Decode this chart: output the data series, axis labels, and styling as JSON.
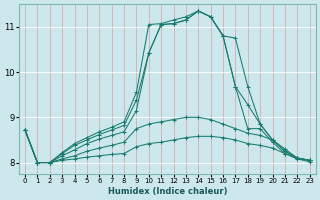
{
  "title": "",
  "xlabel": "Humidex (Indice chaleur)",
  "background_color": "#cce8ec",
  "line_color": "#1a7a6e",
  "xlim": [
    -0.5,
    23.5
  ],
  "ylim": [
    7.75,
    11.5
  ],
  "yticks": [
    8,
    9,
    10,
    11
  ],
  "xticks": [
    0,
    1,
    2,
    3,
    4,
    5,
    6,
    7,
    8,
    9,
    10,
    11,
    12,
    13,
    14,
    15,
    16,
    17,
    18,
    19,
    20,
    21,
    22,
    23
  ],
  "series": [
    [
      8.72,
      8.0,
      8.0,
      8.22,
      8.42,
      8.55,
      8.68,
      8.78,
      8.9,
      9.55,
      11.05,
      11.07,
      11.15,
      11.22,
      11.35,
      11.22,
      10.8,
      10.75,
      9.68,
      8.85,
      8.5,
      8.25,
      8.1,
      8.05
    ],
    [
      8.72,
      8.0,
      8.0,
      8.2,
      8.38,
      8.5,
      8.62,
      8.72,
      8.82,
      9.38,
      10.42,
      11.05,
      11.07,
      11.15,
      11.35,
      11.22,
      10.8,
      9.68,
      9.28,
      8.85,
      8.5,
      8.25,
      8.1,
      8.05
    ],
    [
      8.72,
      8.0,
      8.0,
      8.15,
      8.28,
      8.42,
      8.52,
      8.6,
      8.68,
      9.15,
      10.42,
      11.05,
      11.07,
      11.15,
      11.35,
      11.22,
      10.8,
      9.68,
      8.75,
      8.75,
      8.45,
      8.2,
      8.1,
      8.05
    ],
    [
      8.72,
      8.0,
      8.0,
      8.08,
      8.15,
      8.25,
      8.32,
      8.38,
      8.45,
      8.75,
      8.85,
      8.9,
      8.95,
      9.0,
      9.0,
      8.95,
      8.85,
      8.75,
      8.65,
      8.6,
      8.5,
      8.3,
      8.1,
      8.05
    ],
    [
      8.72,
      8.0,
      8.0,
      8.05,
      8.08,
      8.12,
      8.15,
      8.18,
      8.2,
      8.35,
      8.42,
      8.45,
      8.5,
      8.55,
      8.58,
      8.58,
      8.55,
      8.5,
      8.42,
      8.38,
      8.32,
      8.2,
      8.08,
      8.02
    ]
  ]
}
